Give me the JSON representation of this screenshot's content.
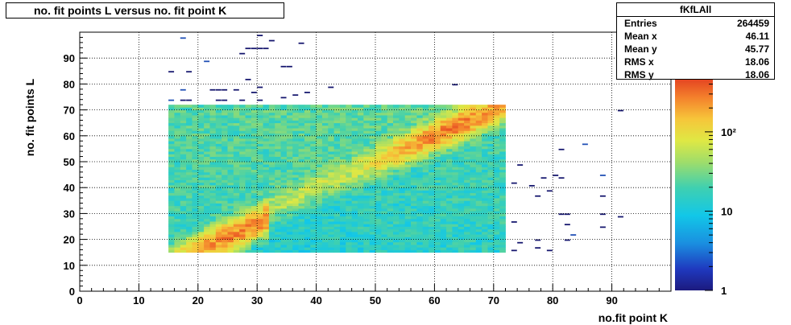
{
  "title": "no. fit points L versus no. fit point K",
  "stats": {
    "name": "fKfLAll",
    "rows": [
      {
        "label": "Entries",
        "value": "264459"
      },
      {
        "label": "Mean x",
        "value": "46.11"
      },
      {
        "label": "Mean y",
        "value": "45.77"
      },
      {
        "label": "RMS x",
        "value": "18.06"
      },
      {
        "label": "RMS y",
        "value": "18.06"
      }
    ]
  },
  "chart_data": {
    "type": "heatmap",
    "title": "no. fit points L versus no. fit point K",
    "xlabel": "no.fit point K",
    "ylabel": "no. fit points  L",
    "xlim": [
      0,
      100
    ],
    "ylim": [
      0,
      100
    ],
    "x_ticks": [
      "0",
      "10",
      "20",
      "30",
      "40",
      "50",
      "60",
      "70",
      "80",
      "90"
    ],
    "y_ticks": [
      "0",
      "10",
      "20",
      "30",
      "40",
      "50",
      "60",
      "70",
      "80",
      "90"
    ],
    "colorbar": {
      "scale": "log",
      "min": 1,
      "max": 500,
      "labels": [
        "1",
        "10",
        "10²"
      ]
    },
    "grid": true,
    "bin_size": 1,
    "dense_region": {
      "x": [
        15,
        72
      ],
      "y": [
        15,
        72
      ]
    },
    "ridges": [
      {
        "name": "",
        "x": [
          15,
          32
        ],
        "y_offset": -4,
        "peak_x": 27,
        "peak_y": 27
      },
      {
        "name": "",
        "x": [
          32,
          72
        ],
        "y_offset": 0,
        "peak_x": 63,
        "peak_y": 63
      }
    ],
    "sparse_points": [
      [
        17,
        97
      ],
      [
        30,
        98
      ],
      [
        32,
        96
      ],
      [
        37,
        95
      ],
      [
        28,
        93
      ],
      [
        29,
        93
      ],
      [
        30,
        93
      ],
      [
        31,
        93
      ],
      [
        27,
        91
      ],
      [
        21,
        88
      ],
      [
        34,
        86
      ],
      [
        35,
        86
      ],
      [
        15,
        84
      ],
      [
        18,
        84
      ],
      [
        28,
        81
      ],
      [
        30,
        78
      ],
      [
        42,
        78
      ],
      [
        63,
        79
      ],
      [
        17,
        77
      ],
      [
        22,
        77
      ],
      [
        23,
        77
      ],
      [
        24,
        77
      ],
      [
        26,
        77
      ],
      [
        29,
        76
      ],
      [
        34,
        74
      ],
      [
        36,
        75
      ],
      [
        38,
        76
      ],
      [
        15,
        73
      ],
      [
        17,
        73
      ],
      [
        18,
        73
      ],
      [
        23,
        73
      ],
      [
        24,
        73
      ],
      [
        27,
        73
      ],
      [
        30,
        73
      ],
      [
        91,
        69
      ],
      [
        81,
        54
      ],
      [
        85,
        56
      ],
      [
        74,
        48
      ],
      [
        78,
        43
      ],
      [
        80,
        44
      ],
      [
        81,
        43
      ],
      [
        73,
        41
      ],
      [
        76,
        40
      ],
      [
        79,
        38
      ],
      [
        77,
        36
      ],
      [
        88,
        44
      ],
      [
        88,
        36
      ],
      [
        73,
        26
      ],
      [
        81,
        29
      ],
      [
        82,
        29
      ],
      [
        82,
        25
      ],
      [
        88,
        29
      ],
      [
        88,
        24
      ],
      [
        91,
        28
      ],
      [
        83,
        21
      ],
      [
        74,
        18
      ],
      [
        77,
        19
      ],
      [
        82,
        19
      ],
      [
        73,
        15
      ],
      [
        77,
        16
      ],
      [
        79,
        15
      ]
    ]
  }
}
